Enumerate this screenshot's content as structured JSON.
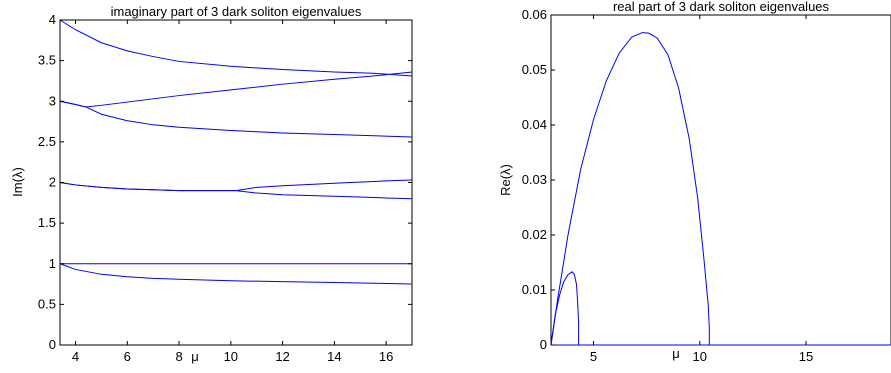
{
  "colors": {
    "line": "#0000ff",
    "axis": "#000000",
    "background": "#ffffff"
  },
  "chart_data": [
    {
      "type": "line",
      "title": "imaginary part of 3 dark soliton eigenvalues",
      "xlabel": "μ",
      "ylabel": "Im(λ)",
      "xlim": [
        3.4,
        17
      ],
      "ylim": [
        0,
        4
      ],
      "xticks": [
        "4",
        "6",
        "8",
        "10",
        "12",
        "14",
        "16"
      ],
      "yticks": [
        "0",
        "0.5",
        "1",
        "1.5",
        "2",
        "2.5",
        "3",
        "3.5",
        "4"
      ],
      "grid": false,
      "series": [
        {
          "x": [
            3.4,
            4,
            5,
            6,
            7,
            8,
            10,
            12,
            14,
            15.5,
            17
          ],
          "y": [
            4.0,
            3.88,
            3.72,
            3.62,
            3.55,
            3.49,
            3.43,
            3.39,
            3.36,
            3.345,
            3.31
          ]
        },
        {
          "x": [
            3.4,
            4,
            4.4,
            5,
            6,
            8,
            10,
            12,
            14,
            15.5,
            17
          ],
          "y": [
            3.0,
            2.96,
            2.93,
            2.95,
            2.99,
            3.07,
            3.14,
            3.21,
            3.27,
            3.31,
            3.36
          ]
        },
        {
          "x": [
            3.4,
            4,
            4.4,
            5,
            6,
            7,
            8,
            10,
            12,
            14,
            17
          ],
          "y": [
            3.0,
            2.96,
            2.93,
            2.84,
            2.76,
            2.71,
            2.68,
            2.64,
            2.61,
            2.59,
            2.56
          ]
        },
        {
          "x": [
            3.4,
            4,
            5,
            6,
            7,
            8,
            9,
            10.2,
            11,
            12,
            14,
            16,
            17
          ],
          "y": [
            2.0,
            1.97,
            1.94,
            1.92,
            1.91,
            1.9,
            1.9,
            1.9,
            1.94,
            1.96,
            1.99,
            2.02,
            2.03
          ]
        },
        {
          "x": [
            3.4,
            4,
            5,
            6,
            7,
            8,
            9,
            10.2,
            11,
            12,
            14,
            16,
            17
          ],
          "y": [
            2.0,
            1.97,
            1.94,
            1.92,
            1.91,
            1.9,
            1.9,
            1.9,
            1.87,
            1.85,
            1.83,
            1.81,
            1.8
          ]
        },
        {
          "x": [
            3.4,
            17
          ],
          "y": [
            1.0,
            1.0
          ]
        },
        {
          "x": [
            3.4,
            4,
            5,
            6,
            7,
            8,
            10,
            12,
            14,
            17
          ],
          "y": [
            1.0,
            0.93,
            0.87,
            0.84,
            0.82,
            0.81,
            0.79,
            0.78,
            0.77,
            0.75
          ]
        }
      ]
    },
    {
      "type": "line",
      "title": "real part of 3 dark soliton eigenvalues",
      "xlabel": "μ",
      "ylabel": "Re(λ)",
      "xlim": [
        3.0,
        19
      ],
      "ylim": [
        0,
        0.06
      ],
      "xticks": [
        "5",
        "10",
        "15"
      ],
      "yticks": [
        "0",
        "0.01",
        "0.02",
        "0.03",
        "0.04",
        "0.05",
        "0.06"
      ],
      "grid": false,
      "series": [
        {
          "x": [
            3.0,
            3.2,
            3.4,
            3.6,
            3.8,
            4.0,
            4.1,
            4.2,
            4.25,
            4.3,
            4.3
          ],
          "y": [
            0,
            0.0055,
            0.009,
            0.0115,
            0.0128,
            0.0133,
            0.0128,
            0.011,
            0.008,
            0.004,
            0
          ]
        },
        {
          "x": [
            3.0,
            3.3,
            3.8,
            4.4,
            5,
            5.6,
            6.2,
            6.8,
            7.3,
            7.6,
            8,
            8.5,
            9,
            9.5,
            9.9,
            10.2,
            10.4,
            10.45,
            10.45
          ],
          "y": [
            0,
            0.008,
            0.02,
            0.032,
            0.041,
            0.048,
            0.053,
            0.056,
            0.0568,
            0.0567,
            0.0558,
            0.0528,
            0.0468,
            0.0376,
            0.0268,
            0.0155,
            0.0072,
            0.003,
            0
          ]
        },
        {
          "x": [
            3.0,
            19
          ],
          "y": [
            0,
            0
          ]
        }
      ]
    }
  ]
}
